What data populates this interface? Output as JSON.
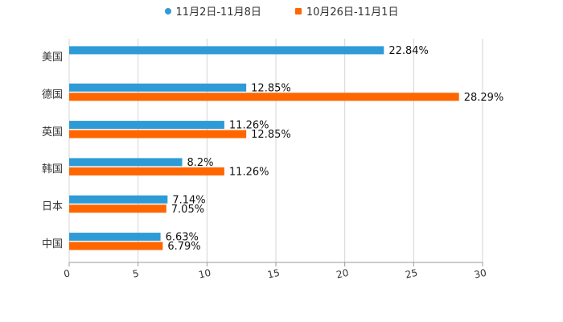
{
  "chart_data": {
    "type": "bar",
    "orientation": "horizontal",
    "categories": [
      "美国",
      "德国",
      "英国",
      "韩国",
      "日本",
      "中国"
    ],
    "series": [
      {
        "name": "11月2日-11月8日",
        "color": "#2e9bd6",
        "values": [
          22.84,
          12.85,
          11.26,
          8.2,
          7.14,
          6.63
        ],
        "labels": [
          "22.84%",
          "12.85%",
          "11.26%",
          "8.2%",
          "7.14%",
          "6.63%"
        ]
      },
      {
        "name": "10月26日-11月1日",
        "color": "#ff6600",
        "values": [
          null,
          28.29,
          12.85,
          11.26,
          7.05,
          6.79
        ],
        "labels": [
          "",
          "28.29%",
          "12.85%",
          "11.26%",
          "7.05%",
          "6.79%"
        ]
      }
    ],
    "xlim": [
      0,
      30
    ],
    "xticks": [
      0,
      5,
      10,
      15,
      20,
      25,
      30
    ],
    "xtick_labels": [
      "0",
      "5",
      "10",
      "15",
      "20",
      "25",
      "30"
    ],
    "grid": true,
    "legend_position": "top-center"
  }
}
